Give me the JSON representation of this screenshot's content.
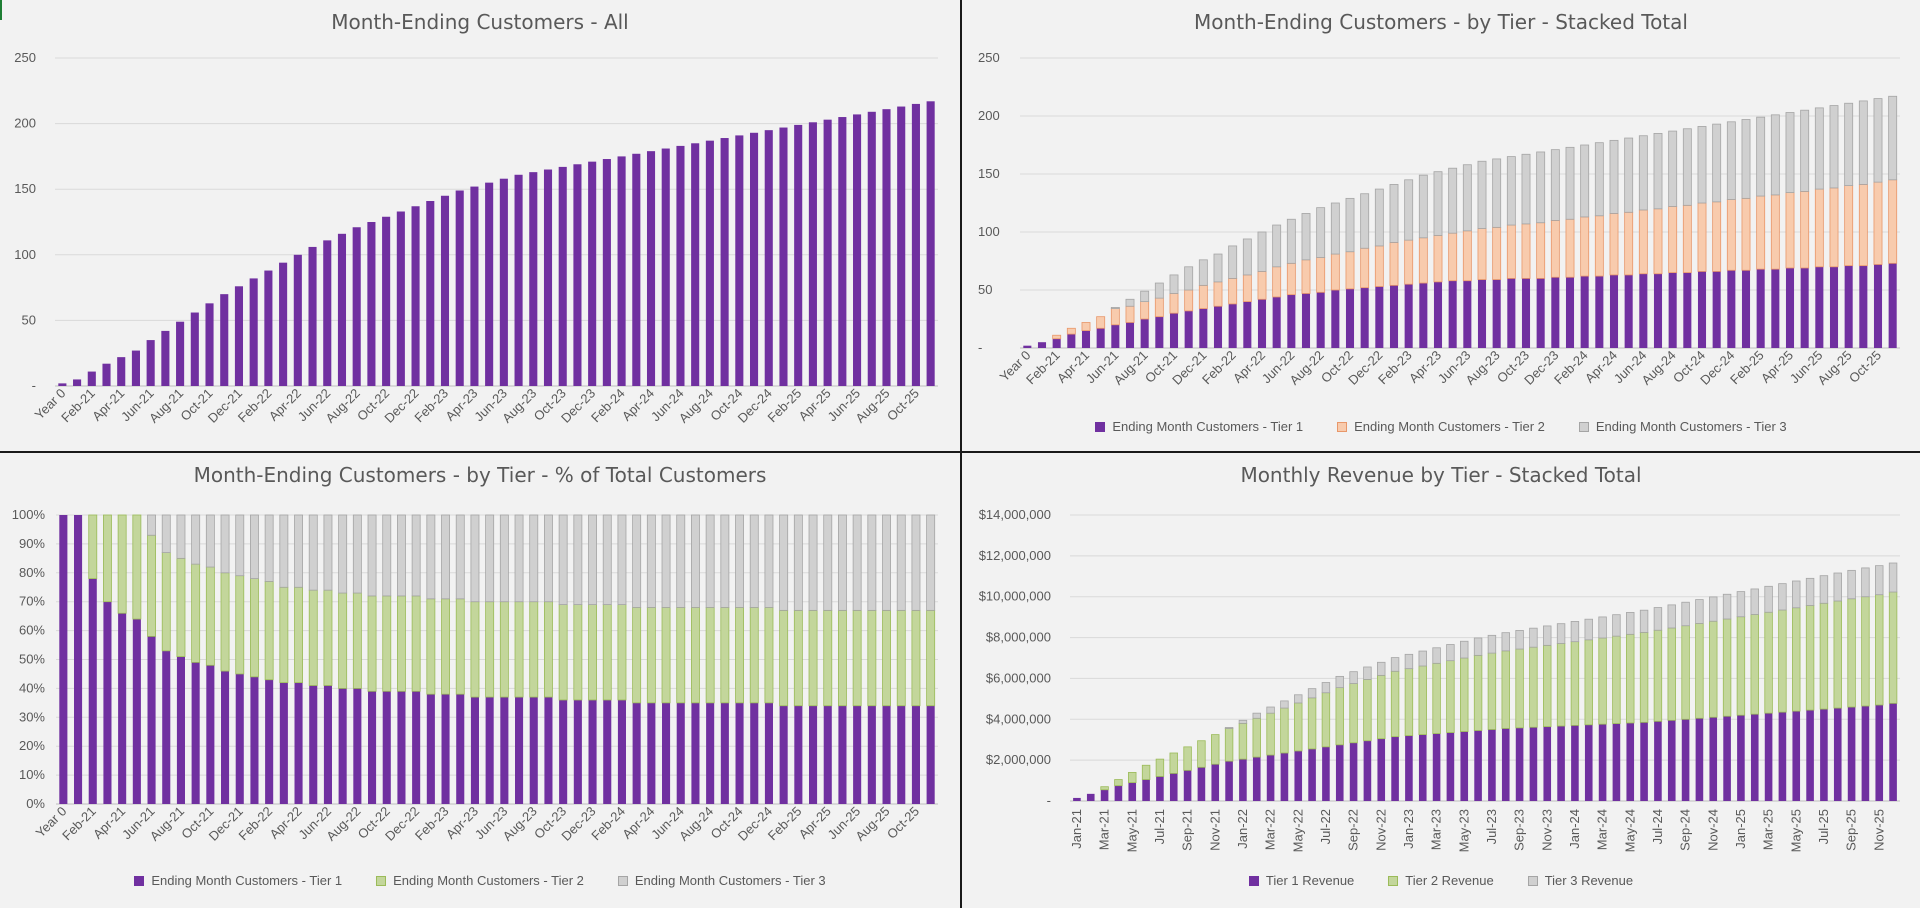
{
  "colors": {
    "tier1": "#7030a0",
    "tier2_orange": "#f8cbad",
    "tier2_orange_stroke": "#e8976a",
    "tier2_green": "#c3d69b",
    "tier2_green_stroke": "#9bbb59",
    "tier3": "#d0d0d0",
    "tier3_stroke": "#a5a5a5",
    "grid": "#d9d9d9",
    "text": "#595959"
  },
  "chart_data": [
    {
      "type": "bar",
      "title": "Month-Ending Customers - All",
      "xlabel": "",
      "ylabel": "",
      "ylim": [
        0,
        250
      ],
      "yticks": [
        "-",
        "50",
        "100",
        "150",
        "200",
        "250"
      ],
      "grid": true,
      "xtick_labels": [
        "Year 0",
        "Feb-21",
        "Apr-21",
        "Jun-21",
        "Aug-21",
        "Oct-21",
        "Dec-21",
        "Feb-22",
        "Apr-22",
        "Jun-22",
        "Aug-22",
        "Oct-22",
        "Dec-22",
        "Feb-23",
        "Apr-23",
        "Jun-23",
        "Aug-23",
        "Oct-23",
        "Dec-23",
        "Feb-24",
        "Apr-24",
        "Jun-24",
        "Aug-24",
        "Oct-24",
        "Dec-24",
        "Feb-25",
        "Apr-25",
        "Jun-25",
        "Aug-25",
        "Oct-25"
      ],
      "values": [
        2,
        5,
        11,
        17,
        22,
        27,
        35,
        42,
        49,
        56,
        63,
        70,
        76,
        82,
        88,
        94,
        100,
        106,
        111,
        116,
        121,
        125,
        129,
        133,
        137,
        141,
        145,
        149,
        152,
        155,
        158,
        161,
        163,
        165,
        167,
        169,
        171,
        173,
        175,
        177,
        179,
        181,
        183,
        185,
        187,
        189,
        191,
        193,
        195,
        197,
        199,
        201,
        203,
        205,
        207,
        209,
        211,
        213,
        215,
        217
      ]
    },
    {
      "type": "bar",
      "stacked": true,
      "title": "Month-Ending Customers - by Tier - Stacked Total",
      "xlabel": "",
      "ylabel": "",
      "ylim": [
        0,
        250
      ],
      "yticks": [
        "-",
        "50",
        "100",
        "150",
        "200",
        "250"
      ],
      "grid": true,
      "legend_position": "bottom",
      "xtick_labels": [
        "Year 0",
        "Feb-21",
        "Apr-21",
        "Jun-21",
        "Aug-21",
        "Oct-21",
        "Dec-21",
        "Feb-22",
        "Apr-22",
        "Jun-22",
        "Aug-22",
        "Oct-22",
        "Dec-22",
        "Feb-23",
        "Apr-23",
        "Jun-23",
        "Aug-23",
        "Oct-23",
        "Dec-23",
        "Feb-24",
        "Apr-24",
        "Jun-24",
        "Aug-24",
        "Oct-24",
        "Dec-24",
        "Feb-25",
        "Apr-25",
        "Jun-25",
        "Aug-25",
        "Oct-25"
      ],
      "series": [
        {
          "name": "Ending Month Customers - Tier 1",
          "values": [
            2,
            5,
            8,
            12,
            15,
            17,
            20,
            22,
            25,
            27,
            30,
            32,
            34,
            36,
            38,
            40,
            42,
            44,
            46,
            47,
            48,
            50,
            51,
            52,
            53,
            54,
            55,
            56,
            57,
            58,
            58,
            59,
            59,
            60,
            60,
            60,
            61,
            61,
            62,
            62,
            63,
            63,
            64,
            64,
            65,
            65,
            66,
            66,
            67,
            67,
            68,
            68,
            69,
            69,
            70,
            70,
            71,
            71,
            72,
            73
          ]
        },
        {
          "name": "Ending Month Customers - Tier 2",
          "values": [
            0,
            0,
            3,
            5,
            7,
            10,
            14,
            14,
            15,
            16,
            17,
            18,
            20,
            21,
            22,
            23,
            24,
            26,
            27,
            29,
            30,
            31,
            32,
            34,
            35,
            37,
            38,
            39,
            40,
            41,
            43,
            44,
            45,
            46,
            47,
            48,
            49,
            50,
            51,
            52,
            53,
            54,
            55,
            56,
            57,
            58,
            59,
            60,
            61,
            62,
            63,
            64,
            65,
            66,
            67,
            68,
            69,
            70,
            71,
            72
          ]
        },
        {
          "name": "Ending Month Customers - Tier 3",
          "values": [
            0,
            0,
            0,
            0,
            0,
            0,
            1,
            6,
            9,
            13,
            16,
            20,
            22,
            24,
            28,
            31,
            34,
            36,
            38,
            40,
            43,
            44,
            46,
            47,
            49,
            50,
            52,
            54,
            55,
            56,
            57,
            58,
            59,
            59,
            60,
            61,
            61,
            62,
            62,
            63,
            63,
            64,
            64,
            65,
            65,
            66,
            66,
            67,
            67,
            68,
            68,
            69,
            69,
            70,
            70,
            71,
            71,
            72,
            72,
            72
          ]
        }
      ]
    },
    {
      "type": "bar",
      "stacked": true,
      "percent": true,
      "title": "Month-Ending Customers - by Tier - % of Total Customers",
      "xlabel": "",
      "ylabel": "",
      "ylim": [
        0,
        100
      ],
      "yticks": [
        "0%",
        "10%",
        "20%",
        "30%",
        "40%",
        "50%",
        "60%",
        "70%",
        "80%",
        "90%",
        "100%"
      ],
      "grid": true,
      "legend_position": "bottom",
      "xtick_labels": [
        "Year 0",
        "Feb-21",
        "Apr-21",
        "Jun-21",
        "Aug-21",
        "Oct-21",
        "Dec-21",
        "Feb-22",
        "Apr-22",
        "Jun-22",
        "Aug-22",
        "Oct-22",
        "Dec-22",
        "Feb-23",
        "Apr-23",
        "Jun-23",
        "Aug-23",
        "Oct-23",
        "Dec-23",
        "Feb-24",
        "Apr-24",
        "Jun-24",
        "Aug-24",
        "Oct-24",
        "Dec-24",
        "Feb-25",
        "Apr-25",
        "Jun-25",
        "Aug-25",
        "Oct-25"
      ],
      "series": [
        {
          "name": "Ending Month Customers - Tier 1",
          "values": [
            100,
            100,
            78,
            70,
            66,
            64,
            58,
            53,
            51,
            49,
            48,
            46,
            45,
            44,
            43,
            42,
            42,
            41,
            41,
            40,
            40,
            39,
            39,
            39,
            39,
            38,
            38,
            38,
            37,
            37,
            37,
            37,
            37,
            37,
            36,
            36,
            36,
            36,
            36,
            35,
            35,
            35,
            35,
            35,
            35,
            35,
            35,
            35,
            35,
            34,
            34,
            34,
            34,
            34,
            34,
            34,
            34,
            34,
            34,
            34
          ]
        },
        {
          "name": "Ending Month Customers - Tier 2",
          "values": [
            0,
            0,
            22,
            30,
            34,
            36,
            35,
            34,
            34,
            34,
            34,
            34,
            34,
            34,
            34,
            33,
            33,
            33,
            33,
            33,
            33,
            33,
            33,
            33,
            33,
            33,
            33,
            33,
            33,
            33,
            33,
            33,
            33,
            33,
            33,
            33,
            33,
            33,
            33,
            33,
            33,
            33,
            33,
            33,
            33,
            33,
            33,
            33,
            33,
            33,
            33,
            33,
            33,
            33,
            33,
            33,
            33,
            33,
            33,
            33
          ]
        },
        {
          "name": "Ending Month Customers - Tier 3",
          "values": [
            0,
            0,
            0,
            0,
            0,
            0,
            7,
            13,
            15,
            17,
            18,
            20,
            21,
            22,
            23,
            25,
            25,
            26,
            26,
            27,
            27,
            28,
            28,
            28,
            28,
            29,
            29,
            29,
            30,
            30,
            30,
            30,
            30,
            30,
            31,
            31,
            31,
            31,
            31,
            32,
            32,
            32,
            32,
            32,
            32,
            32,
            32,
            32,
            32,
            33,
            33,
            33,
            33,
            33,
            33,
            33,
            33,
            33,
            33,
            33
          ]
        }
      ]
    },
    {
      "type": "bar",
      "stacked": true,
      "title": "Monthly Revenue by Tier - Stacked Total",
      "xlabel": "",
      "ylabel": "",
      "ylim": [
        0,
        14000000
      ],
      "yticks": [
        "-",
        "$2,000,000",
        "$4,000,000",
        "$6,000,000",
        "$8,000,000",
        "$10,000,000",
        "$12,000,000",
        "$14,000,000"
      ],
      "grid": true,
      "legend_position": "bottom",
      "xtick_labels": [
        "Jan-21",
        "Mar-21",
        "May-21",
        "Jul-21",
        "Sep-21",
        "Nov-21",
        "Jan-22",
        "Mar-22",
        "May-22",
        "Jul-22",
        "Sep-22",
        "Nov-22",
        "Jan-23",
        "Mar-23",
        "May-23",
        "Jul-23",
        "Sep-23",
        "Nov-23",
        "Jan-24",
        "Mar-24",
        "May-24",
        "Jul-24",
        "Sep-24",
        "Nov-24",
        "Jan-25",
        "Mar-25",
        "May-25",
        "Jul-25",
        "Sep-25",
        "Nov-25"
      ],
      "series": [
        {
          "name": "Tier 1 Revenue",
          "values": [
            150000,
            350000,
            550000,
            750000,
            900000,
            1050000,
            1200000,
            1350000,
            1500000,
            1650000,
            1800000,
            1950000,
            2050000,
            2150000,
            2250000,
            2350000,
            2450000,
            2550000,
            2650000,
            2750000,
            2850000,
            2950000,
            3050000,
            3150000,
            3200000,
            3250000,
            3300000,
            3350000,
            3400000,
            3450000,
            3500000,
            3550000,
            3580000,
            3610000,
            3640000,
            3670000,
            3700000,
            3730000,
            3760000,
            3790000,
            3820000,
            3850000,
            3900000,
            3950000,
            4000000,
            4050000,
            4100000,
            4150000,
            4200000,
            4250000,
            4300000,
            4350000,
            4400000,
            4450000,
            4500000,
            4550000,
            4600000,
            4650000,
            4700000,
            4780000
          ]
        },
        {
          "name": "Tier 2 Revenue",
          "values": [
            0,
            0,
            150000,
            300000,
            500000,
            700000,
            850000,
            1000000,
            1150000,
            1300000,
            1450000,
            1600000,
            1750000,
            1900000,
            2050000,
            2200000,
            2350000,
            2500000,
            2650000,
            2800000,
            2900000,
            3000000,
            3100000,
            3200000,
            3280000,
            3360000,
            3440000,
            3520000,
            3600000,
            3680000,
            3740000,
            3800000,
            3860000,
            3920000,
            3980000,
            4040000,
            4100000,
            4160000,
            4220000,
            4280000,
            4340000,
            4400000,
            4460000,
            4520000,
            4580000,
            4640000,
            4700000,
            4760000,
            4820000,
            4880000,
            4940000,
            5000000,
            5060000,
            5120000,
            5180000,
            5240000,
            5300000,
            5350000,
            5400000,
            5450000
          ]
        },
        {
          "name": "Tier 3 Revenue",
          "values": [
            0,
            0,
            0,
            0,
            0,
            0,
            0,
            0,
            0,
            0,
            0,
            50000,
            150000,
            250000,
            300000,
            350000,
            400000,
            450000,
            500000,
            550000,
            580000,
            610000,
            640000,
            670000,
            700000,
            730000,
            760000,
            790000,
            820000,
            850000,
            870000,
            890000,
            910000,
            930000,
            950000,
            970000,
            990000,
            1010000,
            1030000,
            1050000,
            1070000,
            1090000,
            1110000,
            1130000,
            1150000,
            1170000,
            1190000,
            1210000,
            1230000,
            1250000,
            1270000,
            1290000,
            1310000,
            1330000,
            1350000,
            1370000,
            1390000,
            1410000,
            1420000,
            1420000
          ]
        }
      ]
    }
  ]
}
